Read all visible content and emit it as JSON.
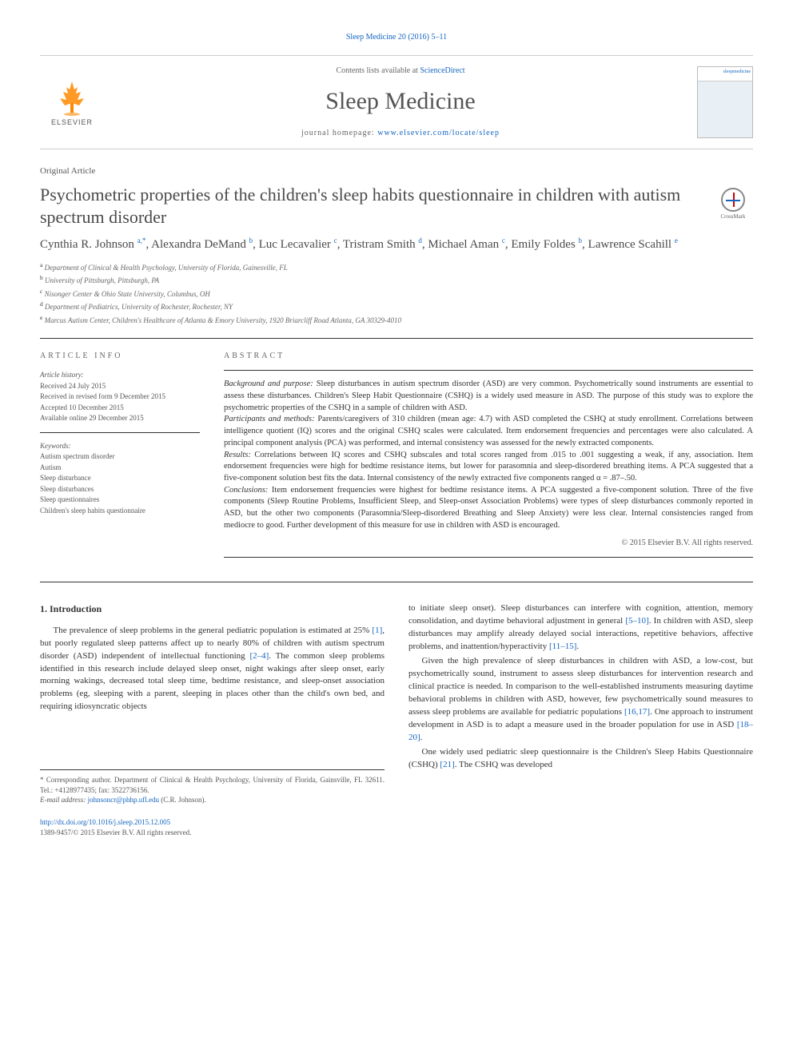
{
  "header": {
    "citation": "Sleep Medicine 20 (2016) 5–11",
    "contents_prefix": "Contents lists available at ",
    "contents_link": "ScienceDirect",
    "journal_name": "Sleep Medicine",
    "homepage_prefix": "journal homepage: ",
    "homepage_url": "www.elsevier.com/locate/sleep",
    "elsevier_label": "ELSEVIER",
    "cover_label": "sleepmedicine"
  },
  "crossmark": {
    "label": "CrossMark"
  },
  "article": {
    "type": "Original Article",
    "title": "Psychometric properties of the children's sleep habits questionnaire in children with autism spectrum disorder",
    "authors_html": "Cynthia R. Johnson <sup>a,*</sup>, Alexandra DeMand <sup>b</sup>, Luc Lecavalier <sup>c</sup>, Tristram Smith <sup>d</sup>, Michael Aman <sup>c</sup>, Emily Foldes <sup>b</sup>, Lawrence Scahill <sup>e</sup>",
    "affiliations": [
      "a Department of Clinical & Health Psychology, University of Florida, Gainesville, FL",
      "b University of Pittsburgh, Pittsburgh, PA",
      "c Nisonger Center & Ohio State University, Columbus, OH",
      "d Department of Pediatrics, University of Rochester, Rochester, NY",
      "e Marcus Autism Center, Children's Healthcare of Atlanta & Emory University, 1920 Briarcliff Road Atlanta, GA 30329-4010"
    ]
  },
  "info": {
    "header": "ARTICLE INFO",
    "history_label": "Article history:",
    "history": [
      "Received 24 July 2015",
      "Received in revised form 9 December 2015",
      "Accepted 10 December 2015",
      "Available online 29 December 2015"
    ],
    "keywords_label": "Keywords:",
    "keywords": [
      "Autism spectrum disorder",
      "Autism",
      "Sleep disturbance",
      "Sleep disturbances",
      "Sleep questionnaires",
      "Children's sleep habits questionnaire"
    ]
  },
  "abstract": {
    "header": "ABSTRACT",
    "sections": {
      "background_label": "Background and purpose:",
      "background": "Sleep disturbances in autism spectrum disorder (ASD) are very common. Psychometrically sound instruments are essential to assess these disturbances. Children's Sleep Habit Questionnaire (CSHQ) is a widely used measure in ASD. The purpose of this study was to explore the psychometric properties of the CSHQ in a sample of children with ASD.",
      "methods_label": "Participants and methods:",
      "methods": "Parents/caregivers of 310 children (mean age: 4.7) with ASD completed the CSHQ at study enrollment. Correlations between intelligence quotient (IQ) scores and the original CSHQ scales were calculated. Item endorsement frequencies and percentages were also calculated. A principal component analysis (PCA) was performed, and internal consistency was assessed for the newly extracted components.",
      "results_label": "Results:",
      "results": "Correlations between IQ scores and CSHQ subscales and total scores ranged from .015 to .001 suggesting a weak, if any, association. Item endorsement frequencies were high for bedtime resistance items, but lower for parasomnia and sleep-disordered breathing items. A PCA suggested that a five-component solution best fits the data. Internal consistency of the newly extracted five components ranged α = .87–.50.",
      "conclusions_label": "Conclusions:",
      "conclusions": "Item endorsement frequencies were highest for bedtime resistance items. A PCA suggested a five-component solution. Three of the five components (Sleep Routine Problems, Insufficient Sleep, and Sleep-onset Association Problems) were types of sleep disturbances commonly reported in ASD, but the other two components (Parasomnia/Sleep-disordered Breathing and Sleep Anxiety) were less clear. Internal consistencies ranged from mediocre to good. Further development of this measure for use in children with ASD is encouraged."
    },
    "copyright": "© 2015 Elsevier B.V. All rights reserved."
  },
  "body": {
    "section_number": "1.",
    "section_title": "Introduction",
    "col1_p1a": "The prevalence of sleep problems in the general pediatric population is estimated at 25% ",
    "col1_ref1": "[1]",
    "col1_p1b": ", but poorly regulated sleep patterns affect up to nearly 80% of children with autism spectrum disorder (ASD) independent of intellectual functioning ",
    "col1_ref2": "[2–4]",
    "col1_p1c": ". The common sleep problems identified in this research include delayed sleep onset, night wakings after sleep onset, early morning wakings, decreased total sleep time, bedtime resistance, and sleep-onset association problems (eg, sleeping with a parent, sleeping in places other than the child's own bed, and requiring idiosyncratic objects",
    "col2_p1a": "to initiate sleep onset). Sleep disturbances can interfere with cognition, attention, memory consolidation, and daytime behavioral adjustment in general ",
    "col2_ref1": "[5–10]",
    "col2_p1b": ". In children with ASD, sleep disturbances may amplify already delayed social interactions, repetitive behaviors, affective problems, and inattention/hyperactivity ",
    "col2_ref2": "[11–15]",
    "col2_p1c": ".",
    "col2_p2a": "Given the high prevalence of sleep disturbances in children with ASD, a low-cost, but psychometrically sound, instrument to assess sleep disturbances for intervention research and clinical practice is needed. In comparison to the well-established instruments measuring daytime behavioral problems in children with ASD, however, few psychometrically sound measures to assess sleep problems are available for pediatric populations ",
    "col2_ref3": "[16,17]",
    "col2_p2b": ". One approach to instrument development in ASD is to adapt a measure used in the broader population for use in ASD ",
    "col2_ref4": "[18–20]",
    "col2_p2c": ".",
    "col2_p3a": "One widely used pediatric sleep questionnaire is the Children's Sleep Habits Questionnaire (CSHQ) ",
    "col2_ref5": "[21]",
    "col2_p3b": ". The CSHQ was developed"
  },
  "footnote": {
    "corr": "* Corresponding author. Department of Clinical & Health Psychology, University of Florida, Gainsville, FL 32611. Tel.: +4128977435; fax: 3522736156.",
    "email_label": "E-mail address: ",
    "email": "johnsoncr@phhp.ufl.edu",
    "email_suffix": " (C.R. Johnson)."
  },
  "footer": {
    "doi": "http://dx.doi.org/10.1016/j.sleep.2015.12.005",
    "issn": "1389-9457/© 2015 Elsevier B.V. All rights reserved."
  },
  "colors": {
    "link": "#1565c0",
    "text": "#333333",
    "muted": "#666666",
    "elsevier_orange": "#ff8800"
  }
}
